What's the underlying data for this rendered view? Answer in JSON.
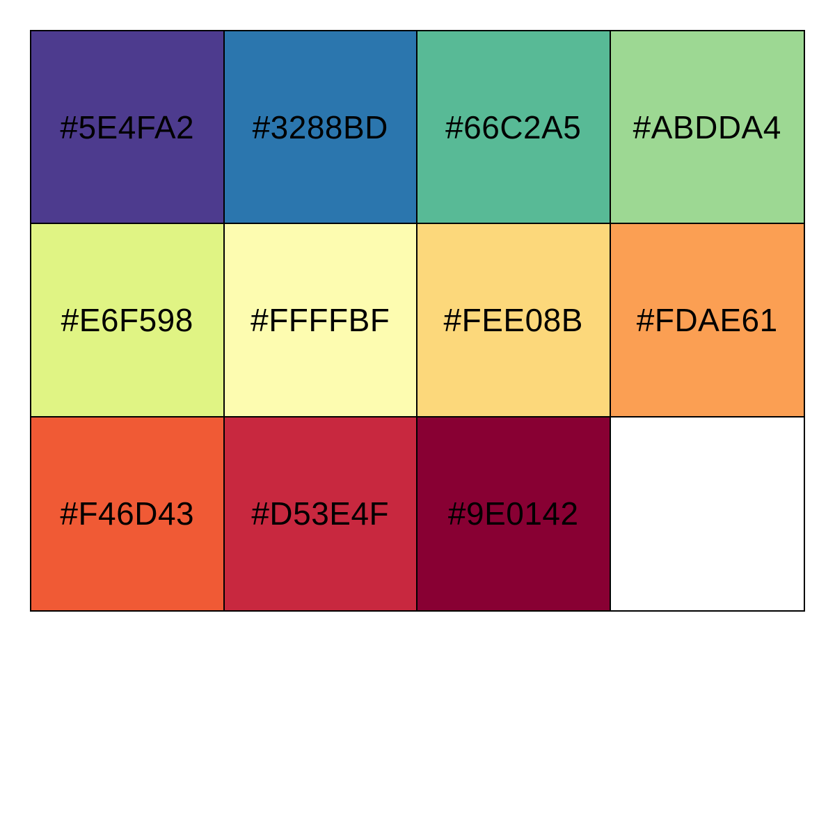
{
  "palette": {
    "swatches": [
      {
        "label": "#5E4FA2",
        "color": "#4D3B8E"
      },
      {
        "label": "#3288BD",
        "color": "#2B76AE"
      },
      {
        "label": "#66C2A5",
        "color": "#58BA96"
      },
      {
        "label": "#ABDDA4",
        "color": "#9DD893"
      },
      {
        "label": "#E6F598",
        "color": "#E0F484"
      },
      {
        "label": "#FFFFBF",
        "color": "#FDFCB0"
      },
      {
        "label": "#FEE08B",
        "color": "#FCD87B"
      },
      {
        "label": "#FDAE61",
        "color": "#FB9F53"
      },
      {
        "label": "#F46D43",
        "color": "#F05A35"
      },
      {
        "label": "#D53E4F",
        "color": "#C8283F"
      },
      {
        "label": "#9E0142",
        "color": "#880033"
      },
      {
        "label": "",
        "color": "#FFFFFF"
      }
    ]
  }
}
